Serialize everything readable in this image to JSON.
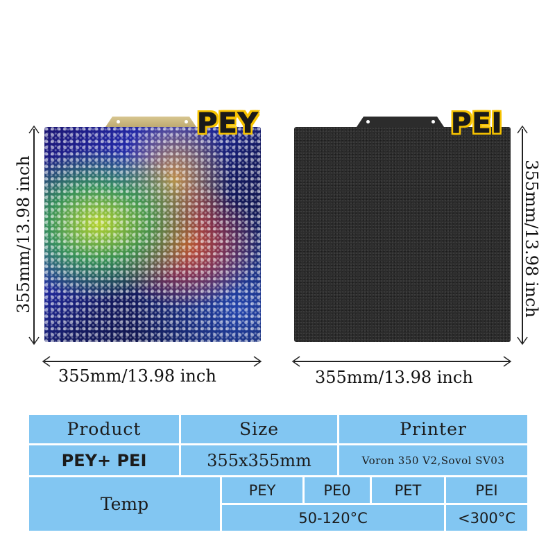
{
  "badges": {
    "left": "PEY",
    "right": "PEI"
  },
  "dimensions": {
    "left_width": "355mm/13.98 inch",
    "left_height": "355mm/13.98 inch",
    "right_width": "355mm/13.98 inch",
    "right_height": "355mm/13.98 inch"
  },
  "table": {
    "headers": {
      "product": "Product",
      "size": "Size",
      "printer": "Printer"
    },
    "row": {
      "product": "PEY+ PEI",
      "size": "355x355mm",
      "printer": "Voron 350 V2,Sovol SV03"
    },
    "temp": {
      "label": "Temp",
      "materials": [
        "PEY",
        "PE0",
        "PET",
        "PEI"
      ],
      "values": [
        "50-120°C",
        "<300°C"
      ]
    }
  },
  "colors": {
    "table_bg": "#82c6f2",
    "badge_yellow": "#f7c300"
  }
}
